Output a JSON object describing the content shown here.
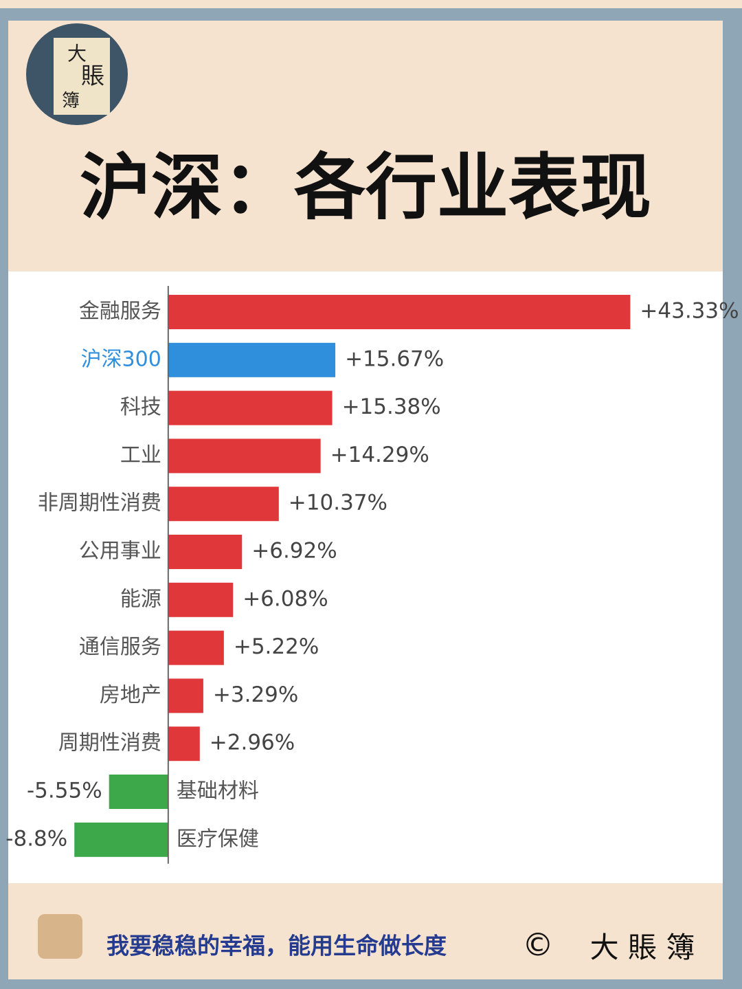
{
  "logo": {
    "chars": [
      "大",
      "賬",
      "簿"
    ]
  },
  "chart_data": {
    "type": "bar",
    "orientation": "horizontal",
    "title": "沪深：各行业表现",
    "categories": [
      "金融服务",
      "沪深300",
      "科技",
      "工业",
      "非周期性消费",
      "公用事业",
      "能源",
      "通信服务",
      "房地产",
      "周期性消费",
      "基础材料",
      "医疗保健"
    ],
    "values": [
      43.33,
      15.67,
      15.38,
      14.29,
      10.37,
      6.92,
      6.08,
      5.22,
      3.29,
      2.96,
      -5.55,
      -8.8
    ],
    "value_labels": [
      "+43.33%",
      "+15.67%",
      "+15.38%",
      "+14.29%",
      "+10.37%",
      "+6.92%",
      "+6.08%",
      "+5.22%",
      "+3.29%",
      "+2.96%",
      "-5.55%",
      "-8.8%"
    ],
    "colors": [
      "#e0383a",
      "#2f8fdc",
      "#e0383a",
      "#e0383a",
      "#e0383a",
      "#e0383a",
      "#e0383a",
      "#e0383a",
      "#e0383a",
      "#e0383a",
      "#3da84a",
      "#3da84a"
    ],
    "highlight_index": 1,
    "highlight_color": "#2f8fdc",
    "xlim": [
      -15,
      52
    ]
  },
  "footer": {
    "slogan": "我要稳稳的幸福，能用生命做长度",
    "copyright": "©",
    "brand": "大 賬 簿"
  }
}
